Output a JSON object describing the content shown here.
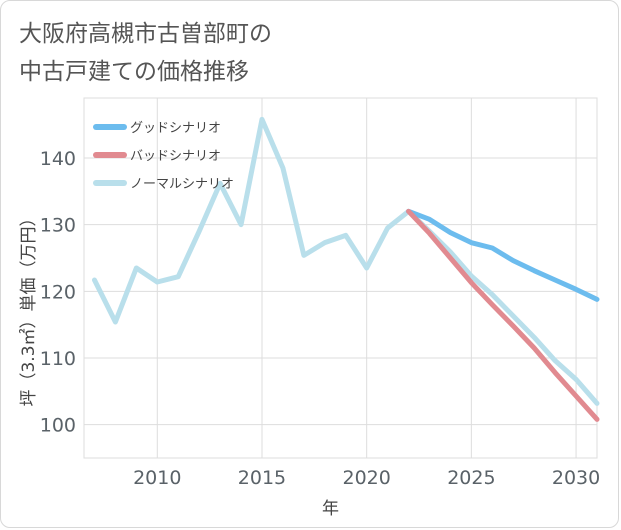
{
  "title_line1": "大阪府高槻市古曽部町の",
  "title_line2": "中古戸建ての価格推移",
  "chart_data": {
    "type": "line",
    "title": "大阪府高槻市古曽部町の中古戸建ての価格推移",
    "xlabel": "年",
    "ylabel": "坪（3.3㎡）単価（万円）",
    "xlim": [
      2006.5,
      2031
    ],
    "ylim": [
      95,
      149
    ],
    "xticks": [
      2010,
      2015,
      2020,
      2025,
      2030
    ],
    "yticks": [
      100,
      110,
      120,
      130,
      140
    ],
    "grid": true,
    "legend_position": "top-left",
    "series": [
      {
        "name": "グッドシナリオ",
        "color": "#6cbcee",
        "x": [
          2022,
          2023,
          2024,
          2025,
          2026,
          2027,
          2028,
          2029,
          2030,
          2031
        ],
        "y": [
          132.0,
          130.8,
          128.8,
          127.3,
          126.5,
          124.6,
          123.1,
          121.7,
          120.3,
          118.8
        ]
      },
      {
        "name": "バッドシナリオ",
        "color": "#e18a90",
        "x": [
          2022,
          2023,
          2024,
          2025,
          2026,
          2027,
          2028,
          2029,
          2030,
          2031
        ],
        "y": [
          132.0,
          128.7,
          125.0,
          121.3,
          118.0,
          114.8,
          111.5,
          107.8,
          104.3,
          100.8
        ]
      },
      {
        "name": "ノーマルシナリオ",
        "color": "#b9dfeb",
        "x": [
          2007,
          2008,
          2009,
          2010,
          2011,
          2012,
          2013,
          2014,
          2015,
          2016,
          2017,
          2018,
          2019,
          2020,
          2021,
          2022,
          2023,
          2024,
          2025,
          2026,
          2027,
          2028,
          2029,
          2030,
          2031
        ],
        "y": [
          121.7,
          115.4,
          123.5,
          121.4,
          122.2,
          129.0,
          136.2,
          130.0,
          145.8,
          138.5,
          125.4,
          127.3,
          128.4,
          123.5,
          129.5,
          132.0,
          129.0,
          125.9,
          122.3,
          119.5,
          116.3,
          113.1,
          109.6,
          106.8,
          103.2
        ]
      }
    ]
  }
}
